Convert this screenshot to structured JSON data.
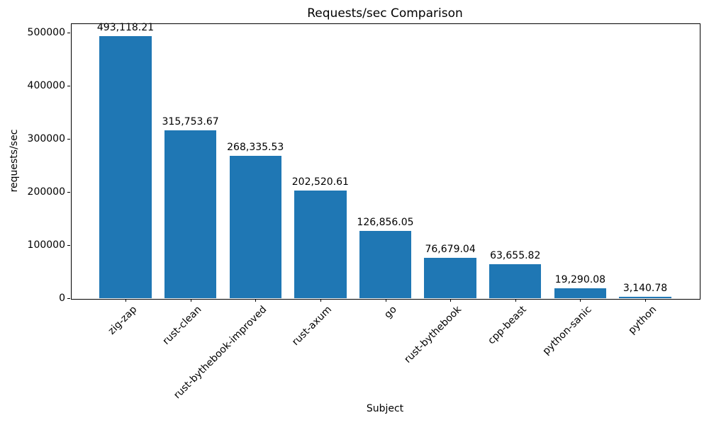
{
  "chart_data": {
    "type": "bar",
    "title": "Requests/sec Comparison",
    "xlabel": "Subject",
    "ylabel": "requests/sec",
    "categories": [
      "zig-zap",
      "rust-clean",
      "rust-bythebook-improved",
      "rust-axum",
      "go",
      "rust-bythebook",
      "cpp-beast",
      "python-sanic",
      "python"
    ],
    "values": [
      493118.21,
      315753.67,
      268335.53,
      202520.61,
      126856.05,
      76679.04,
      63655.82,
      19290.08,
      3140.78
    ],
    "value_labels": [
      "493,118.21",
      "315,753.67",
      "268,335.53",
      "202,520.61",
      "126,856.05",
      "76,679.04",
      "63,655.82",
      "19,290.08",
      "3,140.78"
    ],
    "y_ticks": [
      0,
      100000,
      200000,
      300000,
      400000,
      500000
    ],
    "y_tick_labels": [
      "0",
      "100000",
      "200000",
      "300000",
      "400000",
      "500000"
    ],
    "ylim": [
      0,
      517774
    ],
    "bar_color": "#1f77b4",
    "grid": false,
    "legend_position": "none"
  }
}
